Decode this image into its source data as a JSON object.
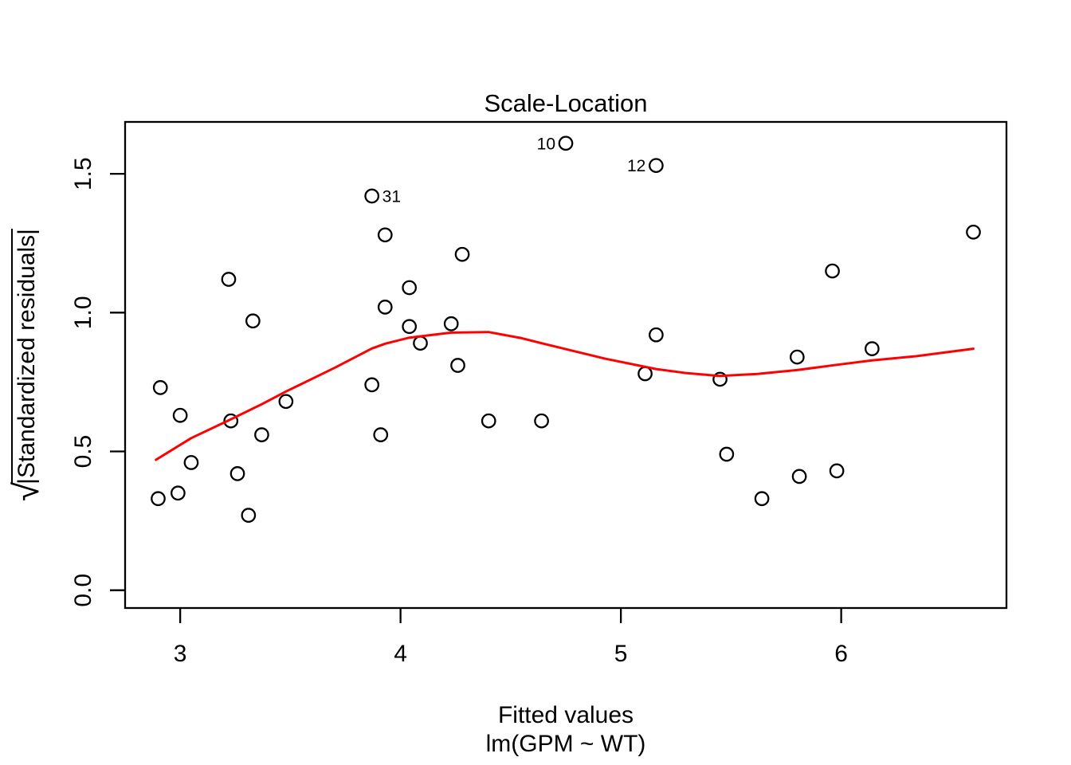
{
  "labels": {
    "title": "Scale-Location",
    "xlabel_line1": "Fitted values",
    "xlabel_line2": "lm(GPM ~ WT)",
    "ylabel_sqrt": "√",
    "ylabel_text": "|Standardized residuals|"
  },
  "chart_data": {
    "type": "scatter",
    "title": "Scale-Location",
    "xlabel": "Fitted values",
    "xlabel_sub": "lm(GPM ~ WT)",
    "ylabel": "sqrt(|Standardized residuals|)",
    "xlim": [
      2.75,
      6.75
    ],
    "ylim": [
      -0.064,
      1.687
    ],
    "x_ticks": [
      3,
      4,
      5,
      6
    ],
    "x_tick_labels": [
      "3",
      "4",
      "5",
      "6"
    ],
    "y_ticks": [
      0.0,
      0.5,
      1.0,
      1.5
    ],
    "y_tick_labels": [
      "0.0",
      "0.5",
      "1.0",
      "1.5"
    ],
    "grid": false,
    "legend": null,
    "point_color": "#000000",
    "smooth_color": "#FF0000",
    "points": [
      {
        "x": 2.9,
        "y": 0.33
      },
      {
        "x": 2.91,
        "y": 0.73
      },
      {
        "x": 2.99,
        "y": 0.35
      },
      {
        "x": 3.0,
        "y": 0.63
      },
      {
        "x": 3.05,
        "y": 0.46
      },
      {
        "x": 3.22,
        "y": 1.12
      },
      {
        "x": 3.23,
        "y": 0.61
      },
      {
        "x": 3.26,
        "y": 0.42
      },
      {
        "x": 3.31,
        "y": 0.27
      },
      {
        "x": 3.33,
        "y": 0.97
      },
      {
        "x": 3.37,
        "y": 0.56
      },
      {
        "x": 3.48,
        "y": 0.68
      },
      {
        "x": 3.87,
        "y": 1.42,
        "label": "31",
        "label_side": "right"
      },
      {
        "x": 3.87,
        "y": 0.74
      },
      {
        "x": 3.91,
        "y": 0.56
      },
      {
        "x": 3.93,
        "y": 1.28
      },
      {
        "x": 3.93,
        "y": 1.02
      },
      {
        "x": 4.04,
        "y": 1.09
      },
      {
        "x": 4.04,
        "y": 0.95
      },
      {
        "x": 4.09,
        "y": 0.89
      },
      {
        "x": 4.23,
        "y": 0.96
      },
      {
        "x": 4.26,
        "y": 0.81
      },
      {
        "x": 4.28,
        "y": 1.21
      },
      {
        "x": 4.4,
        "y": 0.61
      },
      {
        "x": 4.64,
        "y": 0.61
      },
      {
        "x": 4.75,
        "y": 1.61,
        "label": "10",
        "label_side": "left"
      },
      {
        "x": 5.11,
        "y": 0.78
      },
      {
        "x": 5.16,
        "y": 1.53,
        "label": "12",
        "label_side": "left"
      },
      {
        "x": 5.16,
        "y": 0.92
      },
      {
        "x": 5.45,
        "y": 0.76
      },
      {
        "x": 5.48,
        "y": 0.49
      },
      {
        "x": 5.64,
        "y": 0.33
      },
      {
        "x": 5.8,
        "y": 0.84
      },
      {
        "x": 5.81,
        "y": 0.41
      },
      {
        "x": 5.96,
        "y": 1.15
      },
      {
        "x": 5.98,
        "y": 0.43
      },
      {
        "x": 6.14,
        "y": 0.87
      },
      {
        "x": 6.6,
        "y": 1.29
      }
    ],
    "smooth_line": [
      [
        2.89,
        0.47
      ],
      [
        3.05,
        0.548
      ],
      [
        3.22,
        0.612
      ],
      [
        3.37,
        0.67
      ],
      [
        3.48,
        0.716
      ],
      [
        3.6,
        0.762
      ],
      [
        3.7,
        0.801
      ],
      [
        3.87,
        0.871
      ],
      [
        3.93,
        0.888
      ],
      [
        4.04,
        0.91
      ],
      [
        4.23,
        0.928
      ],
      [
        4.4,
        0.93
      ],
      [
        4.55,
        0.908
      ],
      [
        4.64,
        0.89
      ],
      [
        4.79,
        0.861
      ],
      [
        4.93,
        0.834
      ],
      [
        5.16,
        0.797
      ],
      [
        5.3,
        0.782
      ],
      [
        5.45,
        0.772
      ],
      [
        5.62,
        0.779
      ],
      [
        5.8,
        0.793
      ],
      [
        5.98,
        0.812
      ],
      [
        6.14,
        0.828
      ],
      [
        6.34,
        0.843
      ],
      [
        6.6,
        0.87
      ]
    ]
  }
}
